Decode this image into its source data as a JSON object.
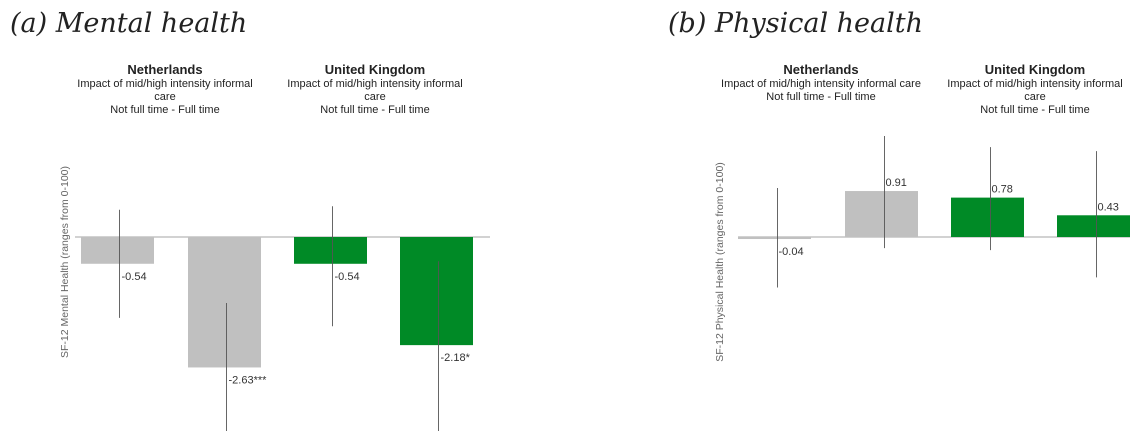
{
  "figure": {
    "panels": [
      {
        "title": "(a)  Mental health",
        "ylabel": "SF-12 Mental Health (ranges from 0-100)"
      },
      {
        "title": "(b)  Physical health",
        "ylabel": "SF-12 Physical Health (ranges from 0-100)"
      }
    ],
    "countries": [
      {
        "name": "Netherlands",
        "subtitle": "Impact of mid/high intensity informal care",
        "comparison": "Not full time - Full time"
      },
      {
        "name": "United Kingdom",
        "subtitle": "Impact of mid/high intensity informal care",
        "comparison": "Not full time - Full time"
      }
    ]
  },
  "colors": {
    "netherlands": "#c0c0c0",
    "united_kingdom": "#008a26",
    "axis": "#a6a6a6",
    "error_bar": "#555555"
  },
  "chart_data": [
    {
      "type": "bar",
      "title": "(a)  Mental health",
      "ylabel": "SF-12 Mental Health (ranges from 0-100)",
      "groups": [
        "Netherlands",
        "United Kingdom"
      ],
      "bars": [
        {
          "group": "Netherlands",
          "value": -0.54,
          "label": "-0.54",
          "ci": [
            -1.63,
            0.55
          ]
        },
        {
          "group": "Netherlands",
          "value": -2.63,
          "label": "-2.63***",
          "ci": [
            -4.13,
            -1.33
          ]
        },
        {
          "group": "United Kingdom",
          "value": -0.54,
          "label": "-0.54",
          "ci": [
            -1.8,
            0.62
          ]
        },
        {
          "group": "United Kingdom",
          "value": -2.18,
          "label": "-2.18*",
          "ci": [
            -4.07,
            -0.49
          ]
        }
      ]
    },
    {
      "type": "bar",
      "title": "(b)  Physical health",
      "ylabel": "SF-12 Physical Health (ranges from 0-100)",
      "groups": [
        "Netherlands",
        "United Kingdom"
      ],
      "bars": [
        {
          "group": "Netherlands",
          "value": -0.04,
          "label": "-0.04",
          "ci": [
            -1.0,
            0.97
          ]
        },
        {
          "group": "Netherlands",
          "value": 0.91,
          "label": "0.91",
          "ci": [
            -0.22,
            2.0
          ]
        },
        {
          "group": "United Kingdom",
          "value": 0.78,
          "label": "0.78",
          "ci": [
            -0.26,
            1.78
          ]
        },
        {
          "group": "United Kingdom",
          "value": 0.43,
          "label": "0.43",
          "ci": [
            -0.8,
            1.7
          ]
        }
      ]
    }
  ]
}
